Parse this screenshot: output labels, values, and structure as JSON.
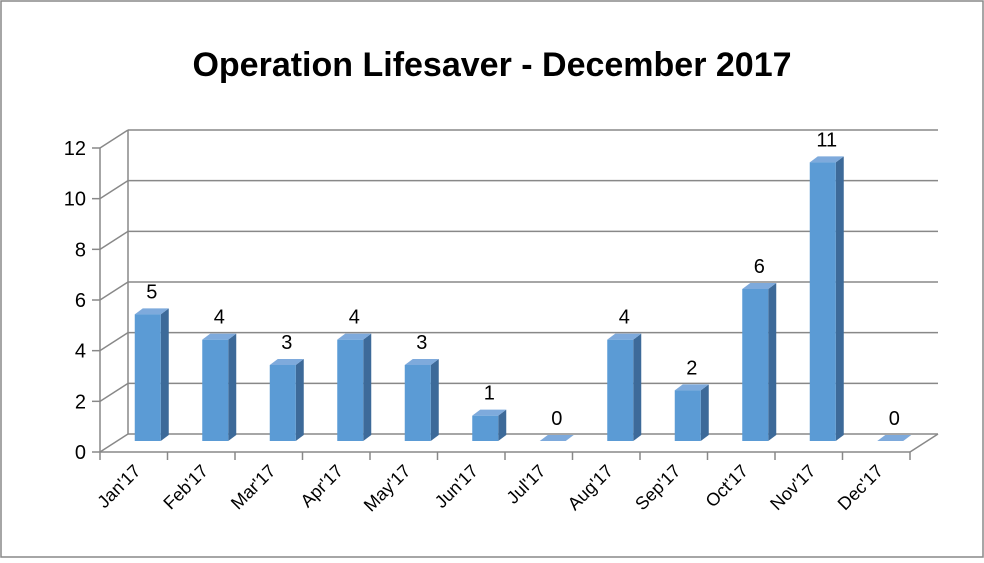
{
  "chart_data": {
    "type": "bar",
    "title": "Operation Lifesaver - December 2017",
    "categories": [
      "Jan'17",
      "Feb'17",
      "Mar'17",
      "Apr'17",
      "May'17",
      "Jun'17",
      "Jul'17",
      "Aug'17",
      "Sep'17",
      "Oct'17",
      "Nov'17",
      "Dec'17"
    ],
    "values": [
      5,
      4,
      3,
      4,
      3,
      1,
      0,
      4,
      2,
      6,
      11,
      0
    ],
    "color": "#5b9bd5",
    "ylim": [
      0,
      12
    ],
    "yticks": [
      0,
      2,
      4,
      6,
      8,
      10,
      12
    ],
    "grid": true
  }
}
